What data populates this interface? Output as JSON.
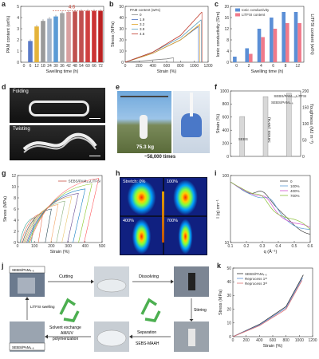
{
  "panels": {
    "a": {
      "label": "a"
    },
    "b": {
      "label": "b"
    },
    "c": {
      "label": "c"
    },
    "d": {
      "label": "d",
      "top_text": "Folding",
      "bottom_text": "Twisting"
    },
    "e": {
      "label": "e",
      "weight_text": "75.3 kg",
      "times_text": "~58,000 times"
    },
    "f": {
      "label": "f",
      "annot_top": "SEBS/PAM₄.₆LiTFSI",
      "annot_mid": "SEBS/PAM₄.₆",
      "annot_low": "SEBS"
    },
    "g": {
      "label": "g"
    },
    "h": {
      "label": "h",
      "cells": [
        "Stretch: 0%",
        "100%",
        "400%",
        "700%"
      ]
    },
    "i": {
      "label": "i"
    },
    "j": {
      "label": "j",
      "box1": "SEBS/PAM₄.₆",
      "box2": "SEBS/PAM₄.₆",
      "cutting": "Cutting",
      "dissolving": "Dissolving",
      "litfsi": "LiTFSI swelling",
      "solvent": "Solvent exchange",
      "amuv": "AM/UV",
      "polymerization": "polymerization",
      "stirring": "Stirring",
      "separation": "Separation",
      "sebs_maah": "SEBS-MAAH"
    },
    "k": {
      "label": "k"
    }
  },
  "chart_data": [
    {
      "id": "a",
      "type": "bar",
      "xlabel": "Swelling time (h)",
      "ylabel": "PAM content (wt%)",
      "categories": [
        "0",
        "6",
        "12",
        "18",
        "24",
        "30",
        "36",
        "42",
        "48",
        "54",
        "60",
        "66",
        "72"
      ],
      "values": [
        0,
        1.9,
        3.2,
        3.7,
        3.9,
        4.1,
        4.4,
        4.5,
        4.55,
        4.6,
        4.6,
        4.6,
        4.6
      ],
      "ylim": [
        0,
        5
      ],
      "yticks": [
        "0",
        "1",
        "2",
        "3",
        "4",
        "5"
      ],
      "annotation": "4.6",
      "bar_colors": [
        "#2a4ea0",
        "#5a7ac8",
        "#e4b33b",
        "#9a9a9a",
        "#a6b5c9",
        "#5b9bd5",
        "#a5a5a5",
        "#d9a0a0",
        "#c0504d",
        "#c05050",
        "#d04040",
        "#c33",
        "#b22"
      ]
    },
    {
      "id": "b",
      "type": "line",
      "xlabel": "Strain (%)",
      "ylabel": "Stress (MPa)",
      "legend_title": "PAM content (wt%)",
      "xlim": [
        0,
        1200
      ],
      "ylim": [
        0,
        50
      ],
      "xticks": [
        "0",
        "200",
        "400",
        "600",
        "800",
        "1000",
        "1200"
      ],
      "yticks": [
        "0",
        "10",
        "20",
        "30",
        "40",
        "50"
      ],
      "series": [
        {
          "name": "0",
          "color": "#888888",
          "x": [
            0,
            200,
            400,
            600,
            700
          ],
          "y": [
            0,
            1,
            2,
            3,
            4
          ]
        },
        {
          "name": "1.9",
          "color": "#4a6fc0",
          "x": [
            0,
            400,
            800,
            1060
          ],
          "y": [
            0,
            8,
            20,
            32
          ]
        },
        {
          "name": "3.2",
          "color": "#e0a020",
          "x": [
            0,
            400,
            800,
            1080
          ],
          "y": [
            0,
            8,
            20,
            34
          ]
        },
        {
          "name": "3.9",
          "color": "#5aa0c0",
          "x": [
            0,
            400,
            800,
            1100
          ],
          "y": [
            0,
            9,
            22,
            38
          ]
        },
        {
          "name": "4.6",
          "color": "#c0392b",
          "x": [
            0,
            400,
            800,
            1110
          ],
          "y": [
            0,
            9,
            24,
            45
          ]
        }
      ]
    },
    {
      "id": "c",
      "type": "bar",
      "xlabel": "Swelling time (h)",
      "ylabel": "Ionic conductivity (S/m)",
      "ylabel2": "LiTFSI content (wt%)",
      "legend": [
        "Ionic conductivity",
        "LiTFSI content"
      ],
      "categories": [
        "0",
        "2",
        "4",
        "6",
        "8",
        "12"
      ],
      "series": [
        {
          "name": "Ionic conductivity",
          "color": "#5b8fd6",
          "values": [
            2,
            5,
            12,
            16,
            18,
            18
          ]
        },
        {
          "name": "LiTFSI content",
          "color": "#f07a8a",
          "values": [
            0,
            3,
            9,
            12,
            14,
            14
          ]
        }
      ],
      "ylim": [
        0,
        20
      ],
      "yticks": [
        "0",
        "2",
        "4",
        "6",
        "8",
        "10",
        "12",
        "14",
        "16",
        "18",
        "20"
      ],
      "ylim2": [
        0,
        20
      ]
    },
    {
      "id": "f",
      "type": "bar",
      "ylabel": "Strain (%)",
      "ylabel_mid": "Stress (MPa)",
      "ylabel2": "Toughness (MJ m⁻³)",
      "categories": [
        "SEBS",
        "SEBS/PAM₄.₆",
        "SEBS/PAM₄.₆LiTFSI"
      ],
      "values": [
        700,
        1050,
        1110
      ],
      "ylim": [
        0,
        1150
      ],
      "yticks": [
        "0",
        "200",
        "400",
        "600",
        "800",
        "1000"
      ],
      "yticks2": [
        "0",
        "50",
        "100",
        "150",
        "200"
      ]
    },
    {
      "id": "g",
      "type": "line",
      "xlabel": "Strain (%)",
      "ylabel": "Stress (MPa)",
      "legend": [
        "SEBS/PAM₄.₆LiTFSI"
      ],
      "xlim": [
        0,
        500
      ],
      "ylim": [
        0,
        12
      ],
      "xticks": [
        "0",
        "100",
        "200",
        "300",
        "400",
        "500"
      ],
      "yticks": [
        "0",
        "2",
        "4",
        "6",
        "8",
        "10",
        "12"
      ],
      "cycle_peaks": [
        [
          100,
          4.5
        ],
        [
          150,
          5.3
        ],
        [
          200,
          6
        ],
        [
          240,
          6.8
        ],
        [
          280,
          7.4
        ],
        [
          320,
          8.2
        ],
        [
          360,
          8.8
        ],
        [
          400,
          9.6
        ],
        [
          440,
          10.5
        ],
        [
          480,
          11.5
        ]
      ]
    },
    {
      "id": "i",
      "type": "line",
      "xlabel": "q (Å⁻¹)",
      "ylabel": "I (q) cm⁻¹",
      "xlim": [
        0.05,
        0.6
      ],
      "ylim": [
        10,
        1000
      ],
      "log": true,
      "xticks": [
        "0.1",
        "0.2",
        "0.3",
        "0.4",
        "0.5",
        "0.6"
      ],
      "yticks": [
        "10",
        "100"
      ],
      "series": [
        {
          "name": "0",
          "color": "#444444"
        },
        {
          "name": "100%",
          "color": "#5b9bd5"
        },
        {
          "name": "400%",
          "color": "#d050d0"
        },
        {
          "name": "700%",
          "color": "#8bbf3a"
        }
      ]
    },
    {
      "id": "k",
      "type": "line",
      "xlabel": "Strain (%)",
      "ylabel": "Stress (MPa)",
      "xlim": [
        0,
        1200
      ],
      "ylim": [
        0,
        50
      ],
      "xticks": [
        "0",
        "200",
        "400",
        "600",
        "800",
        "1000",
        "1200"
      ],
      "yticks": [
        "0",
        "10",
        "20",
        "30",
        "40",
        "50"
      ],
      "series": [
        {
          "name": "SEBS/PAM₄.₆",
          "color": "#333333",
          "x": [
            0,
            400,
            800,
            1060
          ],
          "y": [
            0,
            9,
            22,
            45
          ]
        },
        {
          "name": "Reprocess 1ˢᵗ",
          "color": "#5b8fd6",
          "x": [
            0,
            400,
            800,
            1050
          ],
          "y": [
            0,
            8.5,
            21,
            43
          ]
        },
        {
          "name": "Reprocess 3ʳᵈ",
          "color": "#e07070",
          "x": [
            0,
            400,
            800,
            1040
          ],
          "y": [
            0,
            8,
            20,
            41
          ]
        }
      ]
    }
  ]
}
